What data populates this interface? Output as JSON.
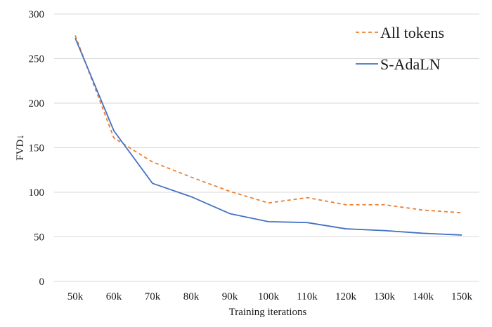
{
  "chart_data": {
    "type": "line",
    "title": "",
    "xlabel": "Training iterations",
    "ylabel": "FVD↓",
    "categories": [
      "50k",
      "60k",
      "70k",
      "80k",
      "90k",
      "100k",
      "110k",
      "120k",
      "130k",
      "140k",
      "150k"
    ],
    "yticks": [
      "0",
      "50",
      "100",
      "150",
      "200",
      "250",
      "300"
    ],
    "ylim": [
      0,
      300
    ],
    "grid": "horizontal",
    "legend": "top-right",
    "series": [
      {
        "name": "All tokens",
        "color": "#ED7D31",
        "style": "dashed",
        "values": [
          276,
          161,
          134,
          117,
          101,
          88,
          94,
          86,
          86,
          80,
          77
        ]
      },
      {
        "name": "S-AdaLN",
        "color": "#4472C4",
        "style": "solid",
        "values": [
          273,
          169,
          110,
          95,
          76,
          67,
          66,
          59,
          57,
          54,
          52
        ]
      }
    ]
  }
}
